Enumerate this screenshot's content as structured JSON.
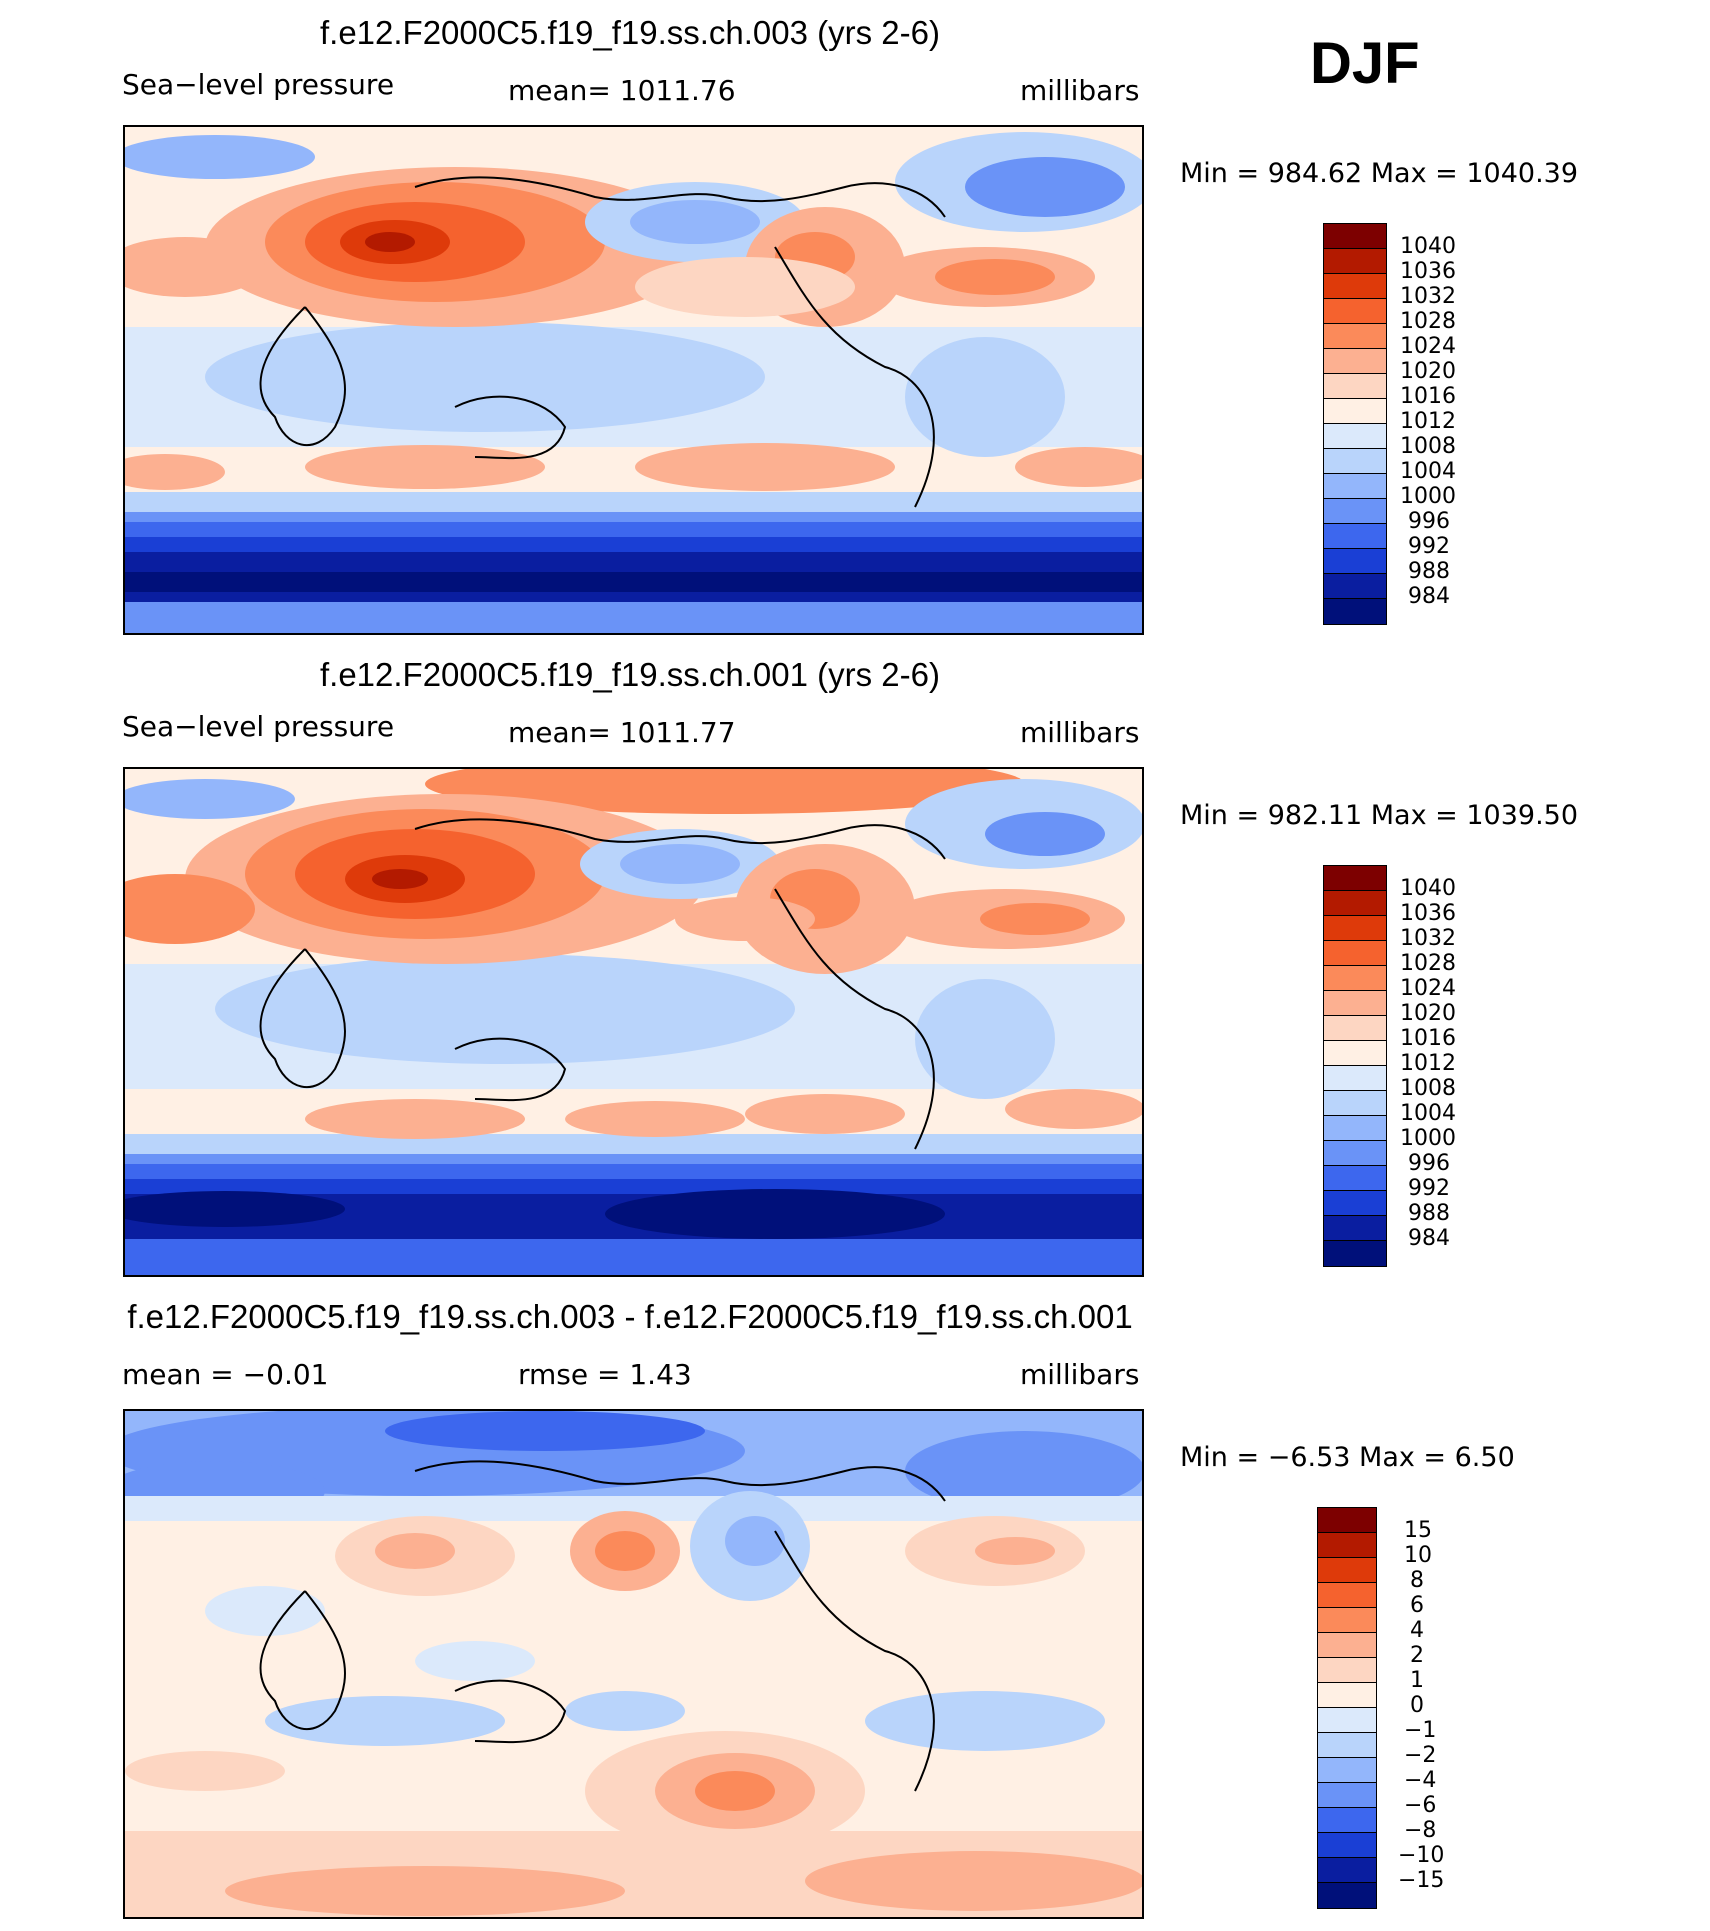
{
  "season": "DJF",
  "panels": [
    {
      "title": "f.e12.F2000C5.f19_f19.ss.ch.003 (yrs 2-6)",
      "variable": "Sea−level pressure",
      "mean_text": "mean=  1011.76",
      "units": "millibars",
      "min_max_text": "Min  =  984.62  Max  =  1040.39",
      "colorbar_labels": [
        "1040",
        "1036",
        "1032",
        "1028",
        "1024",
        "1020",
        "1016",
        "1012",
        "1008",
        "1004",
        "1000",
        "996",
        "992",
        "988",
        "984"
      ]
    },
    {
      "title": "f.e12.F2000C5.f19_f19.ss.ch.001 (yrs 2-6)",
      "variable": "Sea−level pressure",
      "mean_text": "mean=  1011.77",
      "units": "millibars",
      "min_max_text": "Min  =  982.11  Max  =  1039.50",
      "colorbar_labels": [
        "1040",
        "1036",
        "1032",
        "1028",
        "1024",
        "1020",
        "1016",
        "1012",
        "1008",
        "1004",
        "1000",
        "996",
        "992",
        "988",
        "984"
      ]
    },
    {
      "title": "f.e12.F2000C5.f19_f19.ss.ch.003 - f.e12.F2000C5.f19_f19.ss.ch.001",
      "mean_text": "mean  =   −0.01",
      "rmse_text": "rmse  =     1.43",
      "units": "millibars",
      "min_max_text": "Min  =    −6.53  Max  =     6.50",
      "colorbar_labels": [
        "15",
        "10",
        "8",
        "6",
        "4",
        "2",
        "1",
        "0",
        "−1",
        "−2",
        "−4",
        "−6",
        "−8",
        "−10",
        "−15"
      ]
    }
  ],
  "colorbar_colors": [
    "#7d0000",
    "#b31a00",
    "#de3a0a",
    "#f5622e",
    "#fb8a5a",
    "#fcb091",
    "#fdd6c2",
    "#fff0e4",
    "#dbe9fb",
    "#b9d4fb",
    "#93b6fb",
    "#6a93f7",
    "#3d67ee",
    "#1a3fd5",
    "#0a1ea0",
    "#00107a"
  ]
}
